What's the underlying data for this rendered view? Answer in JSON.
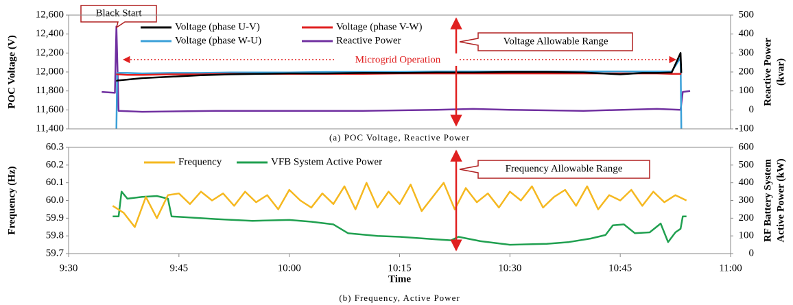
{
  "chart_data": [
    {
      "type": "line",
      "caption": "(a) POC Voltage, Reactive Power",
      "ylabel": "POC Voltage (V)",
      "y2label": [
        "Reactive Power",
        "(kvar)"
      ],
      "annotations": [
        "Black Start",
        "Voltage Allowable Range",
        "Microgrid Operation"
      ],
      "xlim": [
        570,
        660
      ],
      "ylim": [
        11400,
        12600
      ],
      "yticks": [
        {
          "value": 11400,
          "label": "11,400"
        },
        {
          "value": 11600,
          "label": "11,600"
        },
        {
          "value": 11800,
          "label": "11,800"
        },
        {
          "value": 12000,
          "label": "12,000"
        },
        {
          "value": 12200,
          "label": "12,200"
        },
        {
          "value": 12400,
          "label": "12,400"
        },
        {
          "value": 12600,
          "label": "12,600"
        }
      ],
      "y2lim": [
        -100,
        500
      ],
      "y2ticks": [
        -100,
        0,
        100,
        200,
        300,
        400,
        500
      ],
      "series": [
        {
          "name": "Voltage (phase U-V)",
          "color": "#000000",
          "x": [
            576.5,
            576.6,
            578,
            580,
            584,
            588,
            592,
            596,
            600,
            605,
            610,
            615,
            620,
            625,
            630,
            635,
            640,
            645,
            648,
            650,
            652,
            653.2,
            653.3
          ],
          "values": [
            11900,
            11910,
            11920,
            11935,
            11950,
            11965,
            11975,
            11980,
            11985,
            11985,
            11990,
            11990,
            11995,
            11995,
            12000,
            12000,
            11995,
            11975,
            11990,
            11990,
            11995,
            12200,
            11990
          ]
        },
        {
          "name": "Voltage (phase V-W)",
          "color": "#e02020",
          "x": [
            576.5,
            576.6,
            578,
            580,
            584,
            588,
            592,
            596,
            600,
            605,
            610,
            615,
            620,
            625,
            630,
            635,
            640,
            645,
            648,
            650,
            652,
            653.2,
            653.3
          ],
          "values": [
            11980,
            11975,
            11970,
            11970,
            11975,
            11975,
            11980,
            11980,
            11980,
            11980,
            11980,
            11985,
            11985,
            11985,
            11985,
            11985,
            11985,
            11985,
            11985,
            11985,
            11980,
            11980,
            11980
          ]
        },
        {
          "name": "Voltage (phase W-U)",
          "color": "#3aa0d8",
          "x": [
            576.5,
            576.6,
            578,
            580,
            584,
            588,
            592,
            596,
            600,
            605,
            610,
            615,
            620,
            625,
            630,
            635,
            640,
            645,
            648,
            650,
            652,
            653.2,
            653.3
          ],
          "values": [
            11400,
            11990,
            11990,
            11985,
            11990,
            11990,
            11995,
            11995,
            11995,
            12000,
            12000,
            12000,
            12005,
            12005,
            12005,
            12005,
            12005,
            12005,
            12005,
            12005,
            12005,
            12150,
            11400
          ]
        },
        {
          "name": "Reactive Power",
          "color": "#7030a0",
          "axis": "y2",
          "x": [
            574.5,
            576.3,
            576.5,
            576.8,
            580,
            590,
            600,
            610,
            620,
            625,
            630,
            640,
            650,
            653.2,
            653.5,
            654.5
          ],
          "values": [
            95,
            90,
            440,
            -5,
            -10,
            -5,
            -5,
            -5,
            0,
            5,
            0,
            -5,
            5,
            0,
            95,
            100
          ]
        }
      ]
    },
    {
      "type": "line",
      "caption": "(b) Frequency, Active Power",
      "xlabel": "Time",
      "ylabel": "Frequency (Hz)",
      "y2label": [
        "RF Battery System",
        "Active Power (kW)"
      ],
      "annotations": [
        "Frequency Allowable Range"
      ],
      "xlim": [
        570,
        660
      ],
      "xticks": [
        {
          "value": 570,
          "label": "9:30"
        },
        {
          "value": 585,
          "label": "9:45"
        },
        {
          "value": 600,
          "label": "10:00"
        },
        {
          "value": 615,
          "label": "10:15"
        },
        {
          "value": 630,
          "label": "10:30"
        },
        {
          "value": 645,
          "label": "10:45"
        },
        {
          "value": 660,
          "label": "11:00"
        }
      ],
      "ylim": [
        59.7,
        60.3
      ],
      "yticks": [
        59.7,
        59.8,
        59.9,
        {
          "value": 60,
          "label": "60.0"
        },
        60.1,
        60.2,
        60.3
      ],
      "y2lim": [
        0,
        600
      ],
      "y2ticks": [
        0,
        100,
        200,
        300,
        400,
        500,
        600
      ],
      "series": [
        {
          "name": "Frequency",
          "color": "#f5b820",
          "x": [
            576,
            577.5,
            579,
            580.5,
            582,
            583.5,
            585,
            586.5,
            588,
            589.5,
            591,
            592.5,
            594,
            595.5,
            597,
            598.5,
            600,
            601.5,
            603,
            604.5,
            606,
            607.5,
            609,
            610.5,
            612,
            613.5,
            615,
            616.5,
            618,
            619.5,
            621,
            622.5,
            624,
            625.5,
            627,
            628.5,
            630,
            631.5,
            633,
            634.5,
            636,
            637.5,
            639,
            640.5,
            642,
            643.5,
            645,
            646.5,
            648,
            649.5,
            651,
            652.5,
            654
          ],
          "values": [
            59.97,
            59.93,
            59.85,
            60.02,
            59.9,
            60.03,
            60.04,
            59.98,
            60.05,
            60.0,
            60.04,
            59.97,
            60.05,
            59.99,
            60.03,
            59.95,
            60.06,
            60.0,
            59.96,
            60.04,
            59.98,
            60.08,
            59.95,
            60.1,
            59.96,
            60.05,
            59.98,
            60.09,
            59.94,
            60.02,
            60.1,
            59.95,
            60.07,
            59.99,
            60.04,
            59.96,
            60.05,
            60.0,
            60.08,
            59.96,
            60.02,
            60.06,
            59.97,
            60.08,
            59.95,
            60.03,
            60.0,
            60.06,
            59.97,
            60.05,
            59.99,
            60.03,
            60.0
          ]
        },
        {
          "name": "VFB System Active Power",
          "color": "#20a050",
          "axis": "y2",
          "x": [
            576,
            576.8,
            577.2,
            578,
            580,
            582,
            583.5,
            584,
            586,
            590,
            595,
            600,
            603,
            606,
            608,
            612,
            615,
            620,
            622,
            623,
            626,
            630,
            635,
            638,
            641,
            643,
            644,
            645.5,
            647,
            649,
            650.5,
            651.5,
            652.5,
            653.2,
            653.5,
            654
          ],
          "values": [
            210,
            210,
            350,
            310,
            320,
            325,
            310,
            210,
            205,
            195,
            185,
            190,
            180,
            165,
            115,
            100,
            95,
            80,
            75,
            95,
            70,
            50,
            55,
            65,
            85,
            105,
            160,
            165,
            115,
            120,
            170,
            65,
            120,
            140,
            210,
            210
          ]
        }
      ]
    }
  ]
}
